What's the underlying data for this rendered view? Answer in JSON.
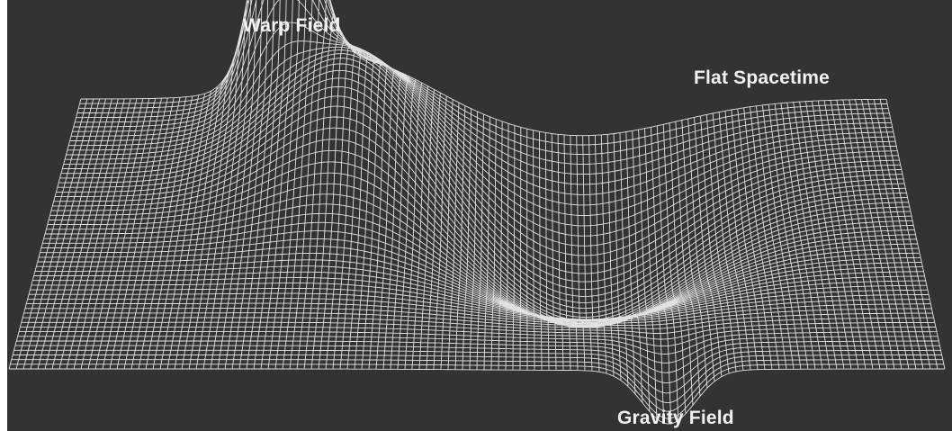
{
  "diagram": {
    "labels": {
      "warp_field": "Warp Field",
      "flat_spacetime": "Flat Spacetime",
      "gravity_field": "Gravity Field"
    },
    "colors": {
      "background": "#333333",
      "mesh": "#f0f0f0",
      "text": "#f2f2f2"
    }
  }
}
